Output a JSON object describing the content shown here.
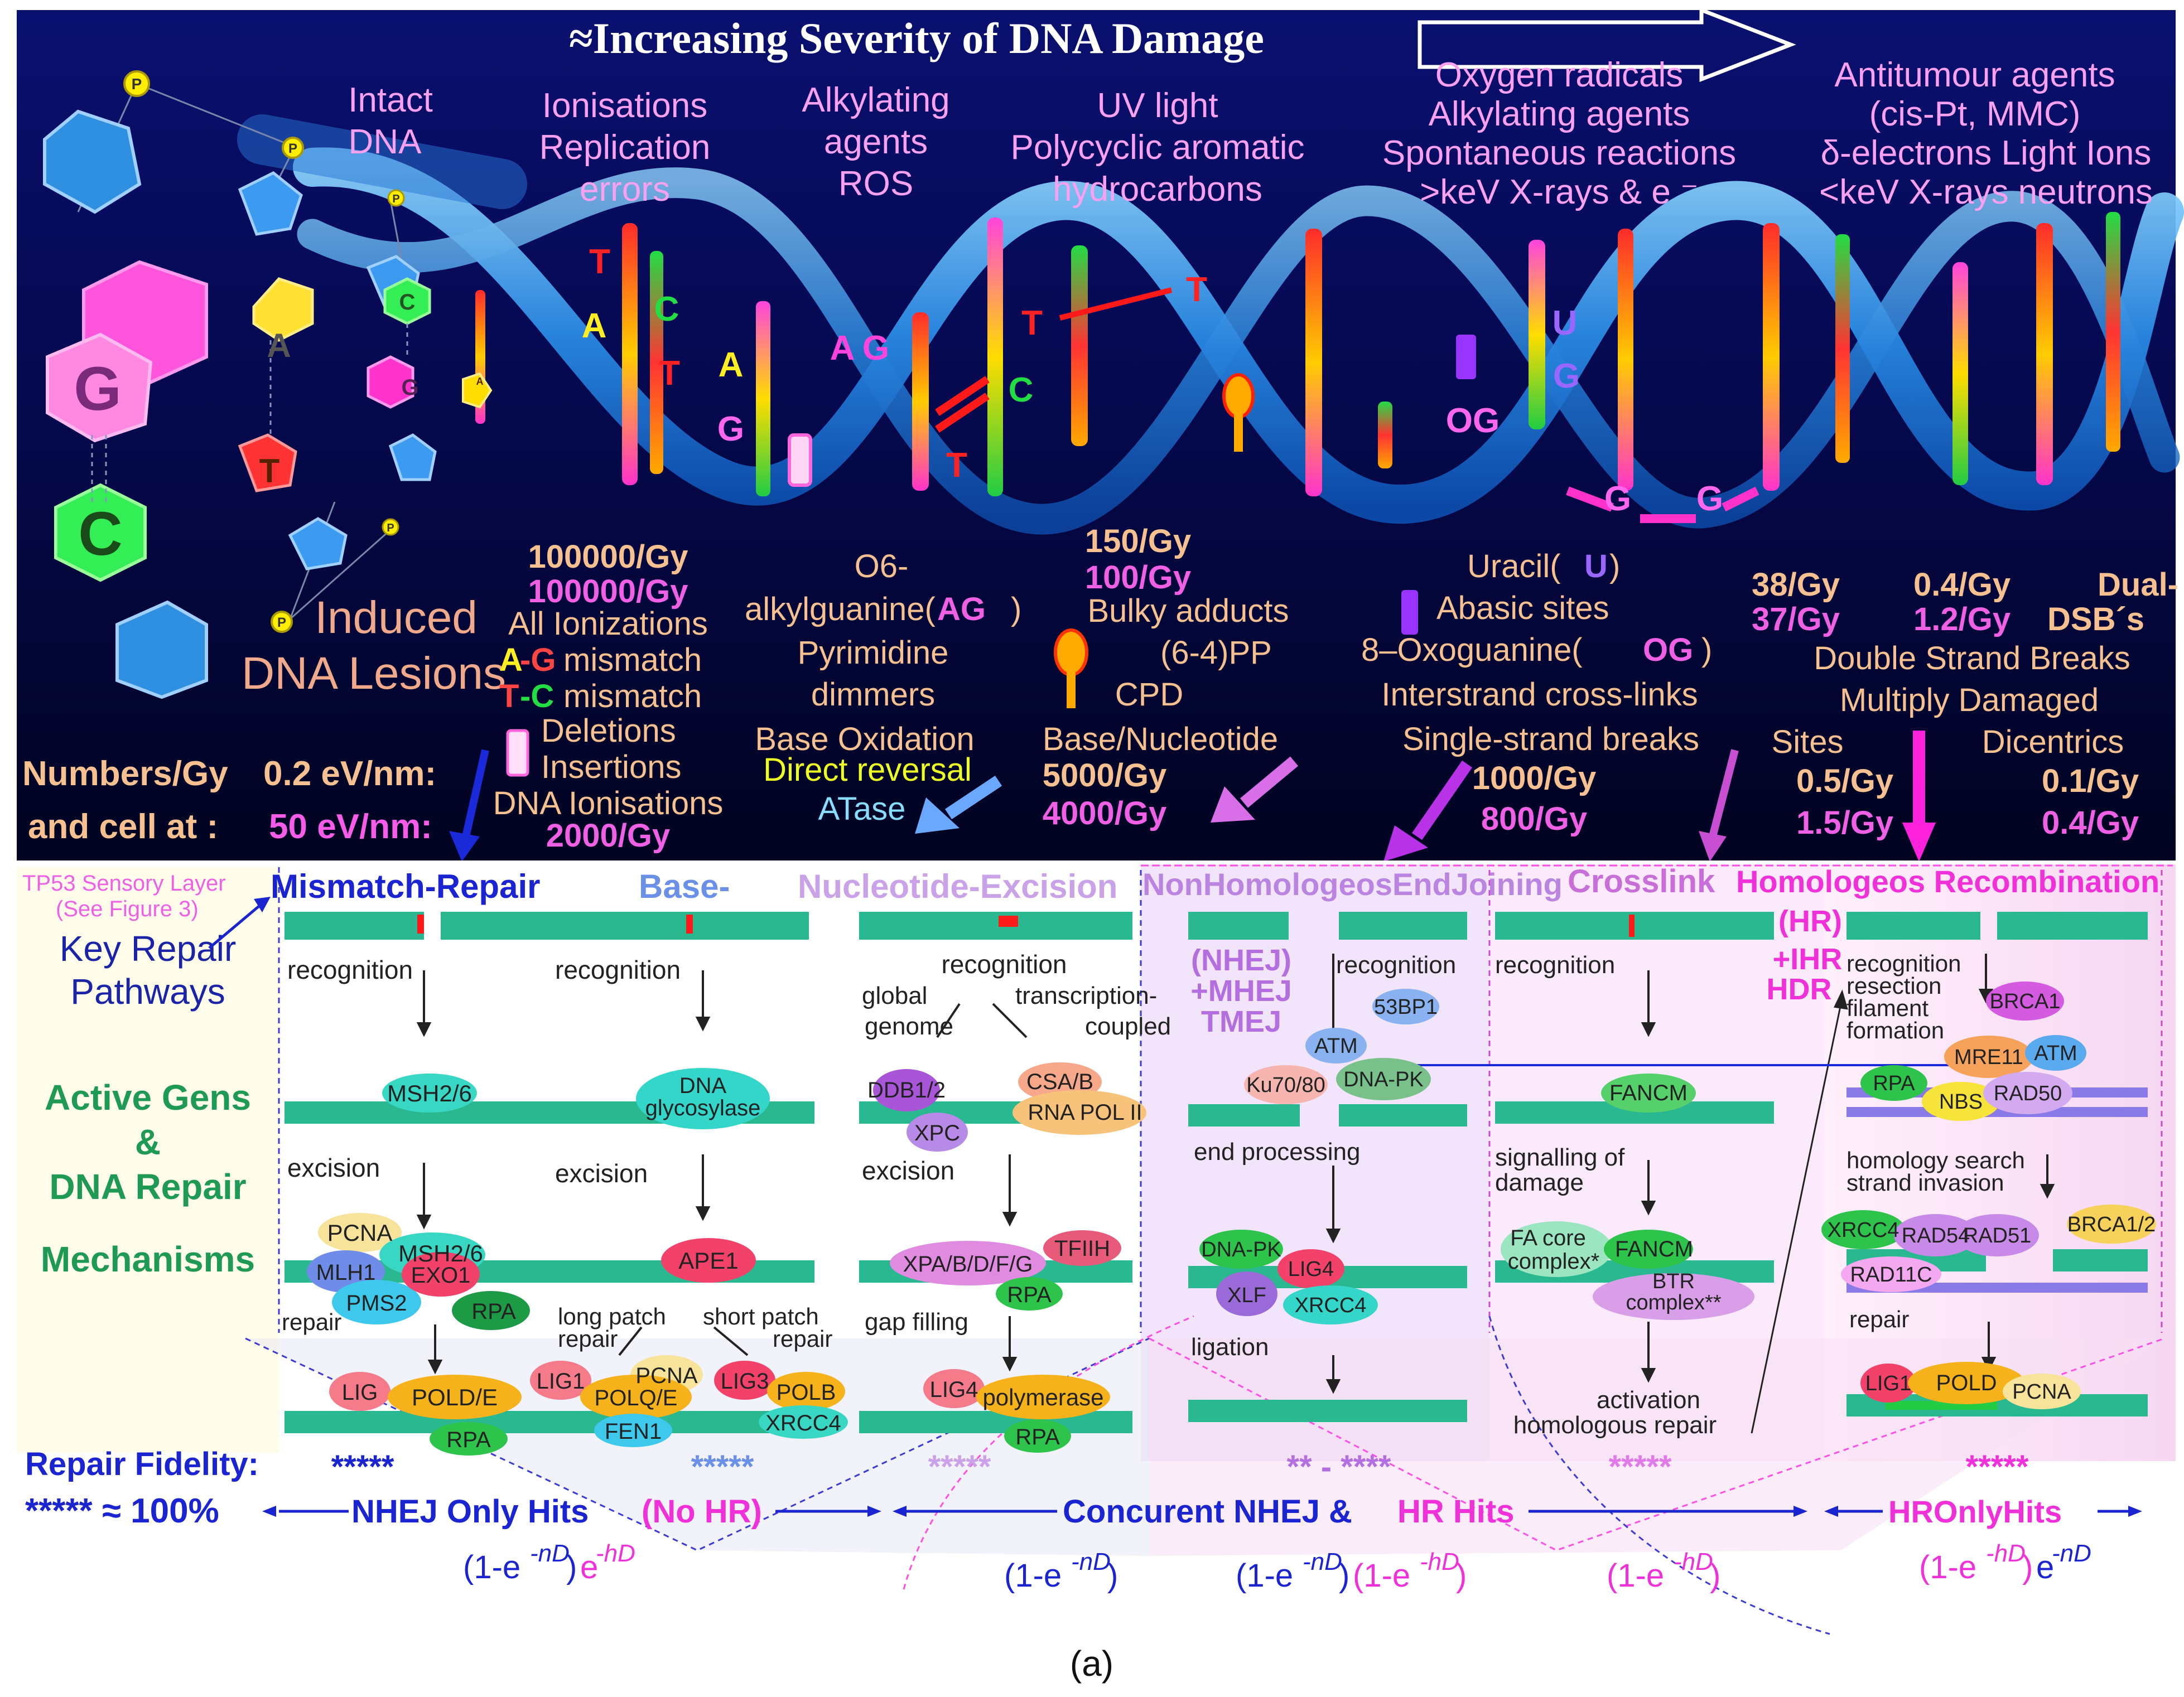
{
  "top": {
    "severity_title": "≈Increasing Severity of DNA Damage",
    "intact": [
      "Intact",
      "DNA"
    ],
    "sources": {
      "s1": [
        "Ionisations",
        "Replication",
        "errors"
      ],
      "s2": [
        "Alkylating",
        "agents",
        "ROS"
      ],
      "s3": [
        "UV light",
        "Polycyclic aromatic",
        "hydrocarbons"
      ],
      "s4": [
        "Oxygen radicals",
        "Alkylating agents",
        "Spontaneous reactions",
        ">keV X-rays & e ⁻"
      ],
      "s5": [
        "Antitumour agents",
        "(cis-Pt, MMC)",
        "δ-electrons Light Ions",
        "<keV X-rays neutrons"
      ]
    },
    "helix_letters": [
      "P",
      "P",
      "P",
      "P",
      "P",
      "G",
      "C",
      "A",
      "T",
      "C",
      "G",
      "A",
      "T",
      "A",
      "C",
      "T",
      "A",
      "G",
      "A",
      "G",
      "T",
      "T",
      "T",
      "C",
      "T",
      "U",
      "G",
      "OG",
      "G",
      "G"
    ],
    "induced": [
      "Induced",
      "DNA Lesions"
    ],
    "numbers_label": [
      "Numbers/Gy",
      "and cell at :"
    ],
    "ev_labels": [
      "0.2 eV/nm:",
      "50 eV/nm:"
    ],
    "col1": {
      "rate_a": "100000/Gy",
      "rate_b": "100000/Gy",
      "all_ion": "All Ionizations",
      "ag_mis_a": "A",
      "ag_mis_b": "-G",
      "ag_mis_c": " mismatch",
      "tc_mis_a": "T",
      "tc_mis_b": "-C",
      "tc_mis_c": " mismatch",
      "deletions": "Deletions",
      "insertions": "Insertions",
      "dna_ion": "DNA Ionisations",
      "rate_c": "2000/Gy"
    },
    "col2": {
      "o6": "O6-",
      "alkylguanine": "alkylguanine(",
      "ag": "AG",
      "close": ")",
      "pyrimidine": "Pyrimidine",
      "dimmers": "dimmers",
      "base_ox": "Base Oxidation",
      "direct": "Direct reversal",
      "atase": "ATase"
    },
    "col3": {
      "rate_a": "150/Gy",
      "rate_b": "100/Gy",
      "bulky": "Bulky adducts",
      "pp": "(6-4)PP",
      "cpd": "CPD",
      "base_nuc": "Base/Nucleotide",
      "rate_c": "5000/Gy",
      "rate_d": "4000/Gy"
    },
    "col4": {
      "uracil": "Uracil(",
      "u": "U",
      "close": ")",
      "abasic": "Abasic sites",
      "oxog": "8–Oxoguanine(",
      "og": "OG",
      "interstrand": "Interstrand cross-links",
      "ssb": "Single-strand breaks",
      "rate_a": "1000/Gy",
      "rate_b": "800/Gy"
    },
    "col5": {
      "rate_a": "38/Gy",
      "rate_b": "37/Gy",
      "rate_c": "0.4/Gy",
      "rate_d": "1.2/Gy",
      "dual": "Dual-",
      "dsbs": "DSB´s",
      "dsb_full": "Double Strand Breaks",
      "multiply": "Multiply Damaged",
      "sites": "Sites",
      "dicentrics": "Dicentrics",
      "rate_e": "0.5/Gy",
      "rate_f": "1.5/Gy",
      "rate_g": "0.1/Gy",
      "rate_h": "0.4/Gy"
    }
  },
  "bottom": {
    "tp53": [
      "TP53 Sensory Layer",
      "(See Figure 3)"
    ],
    "key_repair": [
      "Key Repair",
      "Pathways"
    ],
    "active": [
      "Active Gens",
      "&",
      "DNA Repair",
      "Mechanisms"
    ],
    "headers": {
      "mmr": "Mismatch-Repair",
      "ber": "Base-",
      "ner": "Nucleotide-Excision",
      "nhej": "NonHomologeosEndJoining",
      "crosslink": "Crosslink",
      "hr": "Homologeos Recombination"
    },
    "mmr": {
      "recognition": "recognition",
      "msh26": "MSH2/6",
      "excision": "excision",
      "pcna": "PCNA",
      "msh26b": "MSH2/6",
      "mlh1": "MLH1",
      "pms2": "PMS2",
      "exo1": "EXO1",
      "rpa": "RPA",
      "repair": "repair",
      "lig": "LIG",
      "pole": "POLD/E",
      "rpa2": "RPA",
      "stars": "*****"
    },
    "ber": {
      "recognition": "recognition",
      "glyco1": "DNA",
      "glyco2": "glycosylase",
      "excision": "excision",
      "ape1": "APE1",
      "long1": "long patch",
      "long2": "repair",
      "short1": "short patch",
      "short2": "repair",
      "lig1": "LIG1",
      "pcna": "PCNA",
      "polq": "POLQ/E",
      "fen1": "FEN1",
      "lig3": "LIG3",
      "polb": "POLB",
      "xrcc4": "XRCC4",
      "stars": "*****"
    },
    "ner": {
      "recognition": "recognition",
      "global1": "global",
      "global2": "genome",
      "tc1": "transcription-",
      "tc2": "coupled",
      "ddb": "DDB1/2",
      "xpc": "XPC",
      "csab": "CSA/B",
      "rnapol": "RNA POL II",
      "excision": "excision",
      "xpa": "XPA/B/D/F/G",
      "tfiih": "TFIIH",
      "rpa": "RPA",
      "gap": "gap filling",
      "lig4": "LIG4",
      "polymerase": "polymerase",
      "rpa2": "RPA",
      "stars": "*****"
    },
    "nhej": {
      "n1": "(NHEJ)",
      "n2": "+MHEJ",
      "n3": "TMEJ",
      "recognition": "recognition",
      "bp53": "53BP1",
      "atm": "ATM",
      "ku": "Ku70/80",
      "dnapk": "DNA-PK",
      "endproc": "end processing",
      "dnapk2": "DNA-PK",
      "lig4": "LIG4",
      "xlf": "XLF",
      "xrcc4": "XRCC4",
      "ligation": "ligation",
      "stars": "** - ****"
    },
    "cl": {
      "recognition": "recognition",
      "fancm": "FANCM",
      "signalling1": "signalling of",
      "signalling2": "damage",
      "facore1": "FA core",
      "facore2": "complex*",
      "fancm2": "FANCM",
      "btr1": "BTR",
      "btr2": "complex**",
      "act1": "activation",
      "act2": "homologous repair",
      "stars": "*****"
    },
    "hr": {
      "hr": "(HR)",
      "ihr": "+IHR",
      "hdr": "HDR",
      "recog": [
        "recognition",
        "resection",
        "filament",
        "formation"
      ],
      "brca1": "BRCA1",
      "mre11": "MRE11",
      "atm": "ATM",
      "rpa": "RPA",
      "nbs": "NBS",
      "rad50": "RAD50",
      "homology1": "homology search",
      "homology2": "strand invasion",
      "xrcc4": "XRCC4",
      "rad54": "RAD54",
      "rad51": "RAD51",
      "brca12": "BRCA1/2",
      "rad11c": "RAD11C",
      "repair": "repair",
      "lig1": "LIG1",
      "pold": "POLD",
      "pcna": "PCNA",
      "stars": "*****"
    },
    "fidelity": {
      "label": "Repair Fidelity:",
      "scale": "***** ≈ 100%"
    },
    "hits": {
      "nhej_only": "NHEJ Only Hits",
      "no_hr": "(No HR)",
      "concurrent": "Concurent NHEJ &",
      "hr_hits": "HR Hits",
      "hr_only": "HROnlyHits"
    },
    "formula_parts": {
      "open": "(1-e",
      "n_exp": "-nD",
      "h_exp": "-hD",
      "close": ")",
      "e": "e"
    },
    "caption": "(a)"
  },
  "colors": {
    "navy": "#05084a",
    "accent_magenta": "#ff22dd",
    "blue_text": "#1a24d0",
    "green_text": "#1e9a55"
  }
}
